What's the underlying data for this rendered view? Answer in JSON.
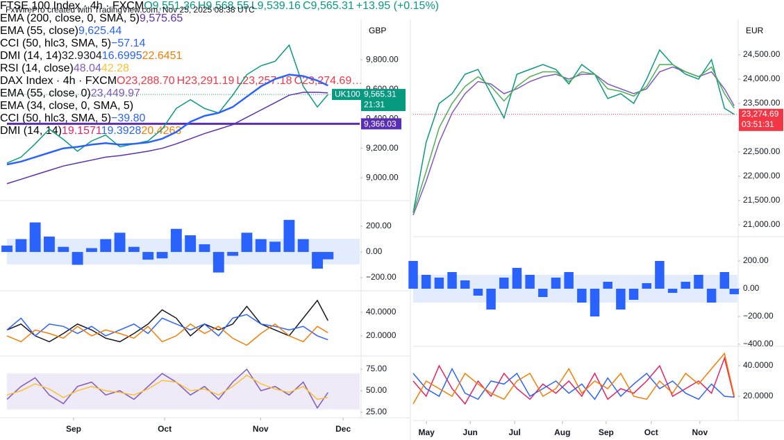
{
  "header": "FxWirePro created with TradingView.com, Nov 25, 2025 08:38 UTC",
  "chart_data": [
    {
      "type": "line",
      "title": "FTSE 100 Index · 4h · FXCM",
      "ohlc": [
        "O9,551.36",
        "H9,568.55",
        "L9,539.16",
        "C9,565.31",
        "+13.95 (+0.15%)"
      ],
      "ohlc_color": "#089981",
      "currency": "GBP",
      "x": [
        0,
        4,
        8,
        12,
        16,
        20,
        24,
        28,
        32,
        36,
        40,
        44,
        48,
        52,
        56,
        60,
        64,
        68,
        72,
        76,
        80,
        84,
        88,
        91
      ],
      "xlim": [
        0,
        100
      ],
      "ylim": [
        8850,
        10065
      ],
      "yticks": [
        {
          "value": 9000,
          "label": "9,000.00"
        },
        {
          "value": 9200,
          "label": "9,200.00"
        },
        {
          "value": 9400,
          "label": "9,400.00"
        },
        {
          "value": 9600,
          "label": "9,600.00"
        },
        {
          "value": 9800,
          "label": "9,800.00"
        }
      ],
      "hline": {
        "value": 9366.03,
        "label": "9,366.03",
        "color": "#5b2fb5"
      },
      "last": {
        "value": 9565.31,
        "label": "9,565.31",
        "symbol": "UK100",
        "countdown": "21:31",
        "color": "#089981"
      },
      "series": [
        {
          "color": "#089981",
          "values": [
            9100,
            9140,
            9230,
            9330,
            9260,
            9180,
            9250,
            9290,
            9210,
            9230,
            9250,
            9330,
            9470,
            9530,
            9470,
            9440,
            9560,
            9700,
            9760,
            9790,
            9900,
            9620,
            9480,
            9565.31
          ]
        },
        {
          "name": "EMA (200, close, 0, SMA, 5)",
          "legend_value": "9,575.65",
          "color": "#5b2fb5",
          "values": [
            8960,
            8990,
            9020,
            9050,
            9080,
            9100,
            9120,
            9140,
            9150,
            9165,
            9180,
            9200,
            9230,
            9265,
            9300,
            9330,
            9360,
            9410,
            9460,
            9510,
            9560,
            9580,
            9580,
            9575.65
          ]
        },
        {
          "name": "EMA (55, close)",
          "legend_value": "9,625.44",
          "color": "#2962ff",
          "values": [
            9090,
            9110,
            9140,
            9170,
            9200,
            9210,
            9225,
            9235,
            9225,
            9230,
            9240,
            9265,
            9310,
            9380,
            9420,
            9440,
            9480,
            9550,
            9620,
            9670,
            9700,
            9690,
            9660,
            9625.44
          ]
        }
      ]
    },
    {
      "type": "bar",
      "title": "CCI (50, hlc3, SMA, 5)",
      "legend_value": "−57.14",
      "color": "#2962ff",
      "x": [
        0,
        4,
        8,
        12,
        16,
        20,
        24,
        28,
        32,
        36,
        40,
        44,
        48,
        52,
        56,
        60,
        64,
        68,
        72,
        76,
        80,
        84,
        88,
        91
      ],
      "xlim": [
        0,
        100
      ],
      "ylim": [
        -297,
        395
      ],
      "yticks": [
        {
          "value": -200,
          "label": "−200.00"
        },
        {
          "value": 0,
          "label": "0.00"
        },
        {
          "value": 200,
          "label": "200.00"
        }
      ],
      "values": [
        50,
        100,
        230,
        120,
        40,
        -100,
        30,
        100,
        150,
        40,
        -60,
        -50,
        180,
        130,
        60,
        -160,
        -30,
        150,
        100,
        80,
        250,
        100,
        -130,
        -57.14
      ]
    },
    {
      "type": "line",
      "title": "DMI (14, 14)",
      "x": [
        0,
        4,
        8,
        12,
        16,
        20,
        24,
        28,
        32,
        36,
        40,
        44,
        48,
        52,
        56,
        60,
        64,
        68,
        72,
        76,
        80,
        84,
        88,
        91
      ],
      "xlim": [
        0,
        100
      ],
      "ylim": [
        3.5,
        57.6
      ],
      "yticks": [
        {
          "value": 20,
          "label": "20.0000"
        },
        {
          "value": 40,
          "label": "40.0000"
        }
      ],
      "series": [
        {
          "legend_value": "32.9304",
          "color": "#131722",
          "values": [
            25,
            30,
            20,
            15,
            22,
            30,
            25,
            18,
            15,
            22,
            30,
            42,
            35,
            20,
            30,
            25,
            30,
            45,
            30,
            25,
            20,
            35,
            50,
            32.9304
          ]
        },
        {
          "legend_value": "16.6995",
          "color": "#2962ff",
          "values": [
            25,
            35,
            20,
            30,
            28,
            22,
            28,
            20,
            25,
            30,
            22,
            35,
            30,
            25,
            30,
            20,
            35,
            38,
            30,
            28,
            25,
            28,
            20,
            16.6995
          ]
        },
        {
          "legend_value": "22.6451",
          "color": "#f57c00",
          "values": [
            20,
            15,
            25,
            22,
            18,
            28,
            20,
            25,
            22,
            18,
            28,
            15,
            20,
            30,
            22,
            28,
            18,
            12,
            22,
            30,
            20,
            15,
            28,
            22.6451
          ]
        }
      ]
    },
    {
      "type": "line",
      "title": "RSI (14, close)",
      "x": [
        0,
        4,
        8,
        12,
        16,
        20,
        24,
        28,
        32,
        36,
        40,
        44,
        48,
        52,
        56,
        60,
        64,
        68,
        72,
        76,
        80,
        84,
        88,
        91
      ],
      "xlim": [
        0,
        100
      ],
      "ylim": [
        20.2,
        89.5
      ],
      "yticks": [
        {
          "value": 25,
          "label": "25.00"
        },
        {
          "value": 50,
          "label": "50.00"
        },
        {
          "value": 75,
          "label": "75.00"
        }
      ],
      "xticks": [
        {
          "value": 18.9,
          "label": "Sep"
        },
        {
          "value": 44.7,
          "label": "Oct"
        },
        {
          "value": 71.9,
          "label": "Nov"
        },
        {
          "value": 95.3,
          "label": "Dec"
        }
      ],
      "series": [
        {
          "legend_value": "48.04",
          "color": "#7e57c2",
          "values": [
            40,
            55,
            65,
            45,
            35,
            55,
            60,
            45,
            50,
            40,
            55,
            70,
            60,
            45,
            55,
            40,
            60,
            75,
            50,
            55,
            45,
            60,
            30,
            48.04
          ]
        },
        {
          "legend_value": "42.28",
          "color": "#fbc02d",
          "values": [
            45,
            50,
            58,
            52,
            42,
            50,
            55,
            50,
            48,
            45,
            52,
            62,
            60,
            50,
            52,
            45,
            55,
            68,
            58,
            52,
            48,
            55,
            40,
            42.28
          ]
        }
      ]
    },
    {
      "type": "line",
      "title": "DAX Index · 4h · FXCM",
      "ohlc": [
        "O23,288.70",
        "H23,291.19",
        "L23,257.18",
        "C23,274.69…"
      ],
      "ohlc_color": "#f23645",
      "currency": "EUR",
      "x": [
        0,
        4,
        8,
        12,
        16,
        20,
        24,
        28,
        32,
        36,
        40,
        44,
        48,
        52,
        56,
        60,
        64,
        68,
        72,
        76,
        80,
        84,
        88,
        92,
        96,
        99
      ],
      "xlim": [
        0,
        100
      ],
      "ylim": [
        20771,
        25200
      ],
      "yticks": [
        {
          "value": 21000,
          "label": "21,000.00"
        },
        {
          "value": 21500,
          "label": "21,500.00"
        },
        {
          "value": 22000,
          "label": "22,000.00"
        },
        {
          "value": 22500,
          "label": "22,500.00"
        },
        {
          "value": 23500,
          "label": "23,500.00"
        },
        {
          "value": 24000,
          "label": "24,000.00"
        },
        {
          "value": 24500,
          "label": "24,500.00"
        }
      ],
      "last": {
        "value": 23274.69,
        "label": "23,274.69",
        "countdown": "03:51:31",
        "color": "#f23645"
      },
      "series": [
        {
          "color": "#089981",
          "values": [
            21250,
            22700,
            23500,
            23700,
            24100,
            24200,
            23700,
            23200,
            24100,
            24200,
            24300,
            24200,
            23900,
            24300,
            24100,
            23600,
            23700,
            23500,
            24000,
            24600,
            24300,
            24100,
            24000,
            24400,
            23400,
            23274.69
          ]
        },
        {
          "name": "EMA (55, close, 0)",
          "legend_value": "23,449.97",
          "color": "#7e57c2",
          "values": [
            21200,
            21900,
            22700,
            23300,
            23700,
            23950,
            23900,
            23700,
            23800,
            23950,
            24050,
            24100,
            24000,
            24100,
            24100,
            23900,
            23800,
            23700,
            23800,
            24150,
            24250,
            24150,
            24050,
            24150,
            23800,
            23449.97
          ]
        },
        {
          "name": "EMA (34, close, 0, SMA, 5)",
          "color": "#4caf50",
          "values": [
            21250,
            22100,
            23000,
            23500,
            23850,
            24050,
            23850,
            23550,
            23850,
            24050,
            24150,
            24150,
            23950,
            24150,
            24100,
            23800,
            23750,
            23650,
            23850,
            24300,
            24300,
            24150,
            24050,
            24250,
            23700,
            23400
          ]
        }
      ]
    },
    {
      "type": "bar",
      "title": "CCI (50, hlc3, SMA, 5)",
      "legend_value": "−39.80",
      "color": "#2962ff",
      "x": [
        0,
        4,
        8,
        12,
        16,
        20,
        24,
        28,
        32,
        36,
        40,
        44,
        48,
        52,
        56,
        60,
        64,
        68,
        72,
        76,
        80,
        84,
        88,
        92,
        96,
        99
      ],
      "xlim": [
        0,
        100
      ],
      "ylim": [
        -410,
        365
      ],
      "yticks": [
        {
          "value": -400,
          "label": "−400.00"
        },
        {
          "value": -200,
          "label": "−200.00"
        },
        {
          "value": 0,
          "label": "0.00"
        },
        {
          "value": 200,
          "label": "200.00"
        }
      ],
      "values": [
        200,
        100,
        80,
        120,
        60,
        -50,
        -150,
        80,
        150,
        100,
        -60,
        80,
        120,
        -100,
        -200,
        50,
        -150,
        -80,
        40,
        200,
        -30,
        50,
        100,
        -100,
        120,
        -39.8
      ]
    },
    {
      "type": "line",
      "title": "DMI (14, 14)",
      "x": [
        0,
        4,
        8,
        12,
        16,
        20,
        24,
        28,
        32,
        36,
        40,
        44,
        48,
        52,
        56,
        60,
        64,
        68,
        72,
        76,
        80,
        84,
        88,
        92,
        96,
        99
      ],
      "xlim": [
        0,
        100
      ],
      "ylim": [
        4.5,
        52.3
      ],
      "yticks": [
        {
          "value": 20,
          "label": "20.0000"
        },
        {
          "value": 40,
          "label": "40.0000"
        }
      ],
      "xticks": [
        {
          "value": 4.1,
          "label": "May"
        },
        {
          "value": 17.6,
          "label": "Jun"
        },
        {
          "value": 31.3,
          "label": "Jul"
        },
        {
          "value": 46,
          "label": "Aug"
        },
        {
          "value": 59.5,
          "label": "Sep"
        },
        {
          "value": 73.4,
          "label": "Oct"
        },
        {
          "value": 88.4,
          "label": "Nov"
        }
      ],
      "series": [
        {
          "legend_value": "19.1571",
          "color": "#e91e63",
          "values": [
            30,
            20,
            40,
            25,
            15,
            30,
            20,
            35,
            25,
            18,
            28,
            22,
            30,
            20,
            35,
            18,
            25,
            22,
            30,
            40,
            20,
            25,
            30,
            22,
            45,
            19.1571
          ]
        },
        {
          "legend_value": "19.3928",
          "color": "#2962ff",
          "values": [
            35,
            25,
            20,
            38,
            22,
            18,
            30,
            28,
            35,
            20,
            25,
            30,
            22,
            28,
            18,
            32,
            20,
            28,
            35,
            25,
            30,
            22,
            18,
            28,
            20,
            19.3928
          ]
        },
        {
          "legend_value": "20.4263",
          "color": "#f57c00",
          "values": [
            15,
            30,
            25,
            20,
            35,
            28,
            22,
            18,
            30,
            35,
            20,
            25,
            38,
            22,
            30,
            25,
            35,
            20,
            18,
            30,
            22,
            35,
            28,
            38,
            48,
            20.4263
          ]
        }
      ]
    }
  ]
}
